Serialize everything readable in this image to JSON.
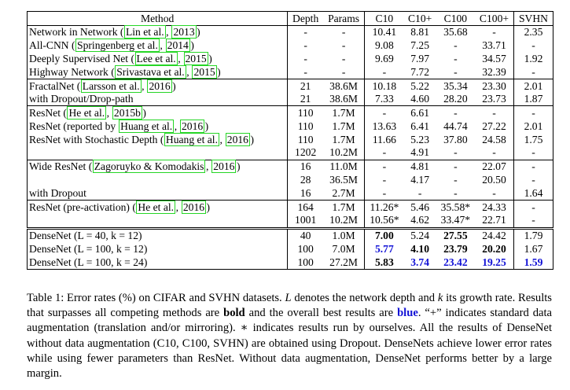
{
  "headers": [
    "Method",
    "Depth",
    "Params",
    "C10",
    "C10+",
    "C100",
    "C100+",
    "SVHN"
  ],
  "rows": [
    {
      "method_text": "Network in Network (",
      "cites": [
        "Lin et al.",
        "2013"
      ],
      "method_tail": ")",
      "cells": [
        "-",
        "-",
        "10.41",
        "8.81",
        "35.68",
        "-",
        "2.35"
      ]
    },
    {
      "method_text": "All-CNN (",
      "cites": [
        "Springenberg et al.",
        "2014"
      ],
      "method_tail": ")",
      "cells": [
        "-",
        "-",
        "9.08",
        "7.25",
        "-",
        "33.71",
        "-"
      ]
    },
    {
      "method_text": "Deeply Supervised Net (",
      "cites": [
        "Lee et al.",
        "2015"
      ],
      "method_tail": ")",
      "cells": [
        "-",
        "-",
        "9.69",
        "7.97",
        "-",
        "34.57",
        "1.92"
      ]
    },
    {
      "method_text": "Highway Network (",
      "cites": [
        "Srivastava et al.",
        "2015"
      ],
      "method_tail": ")",
      "cells": [
        "-",
        "-",
        "-",
        "7.72",
        "-",
        "32.39",
        "-"
      ]
    },
    {
      "method_text": "FractalNet (",
      "cites": [
        "Larsson et al.",
        "2016"
      ],
      "method_tail": ")",
      "cells": [
        "21",
        "38.6M",
        "10.18",
        "5.22",
        "35.34",
        "23.30",
        "2.01"
      ]
    },
    {
      "method_text": "with Dropout/Drop-path",
      "cites": [],
      "method_tail": "",
      "cells": [
        "21",
        "38.6M",
        "7.33",
        "4.60",
        "28.20",
        "23.73",
        "1.87"
      ]
    },
    {
      "method_text": "ResNet (",
      "cites": [
        "He et al.",
        "2015b"
      ],
      "method_tail": ")",
      "cells": [
        "110",
        "1.7M",
        "-",
        "6.61",
        "-",
        "-",
        "-"
      ]
    },
    {
      "method_text": "ResNet (reported by ",
      "cites": [
        "Huang et al.",
        "2016"
      ],
      "method_tail": ")",
      "cells": [
        "110",
        "1.7M",
        "13.63",
        "6.41",
        "44.74",
        "27.22",
        "2.01"
      ]
    },
    {
      "method_text": "ResNet with Stochastic Depth (",
      "cites": [
        "Huang et al.",
        "2016"
      ],
      "method_tail": ")",
      "cells": [
        "110",
        "1.7M",
        "11.66",
        "5.23",
        "37.80",
        "24.58",
        "1.75"
      ]
    },
    {
      "method_text": "",
      "cites": [],
      "method_tail": "",
      "cells": [
        "1202",
        "10.2M",
        "-",
        "4.91",
        "-",
        "-",
        "-"
      ]
    },
    {
      "method_text": "Wide ResNet (",
      "cites": [
        "Zagoruyko & Komodakis",
        "2016"
      ],
      "method_tail": ")",
      "cells": [
        "16",
        "11.0M",
        "-",
        "4.81",
        "-",
        "22.07",
        "-"
      ]
    },
    {
      "method_text": "",
      "cites": [],
      "method_tail": "",
      "cells": [
        "28",
        "36.5M",
        "-",
        "4.17",
        "-",
        "20.50",
        "-"
      ]
    },
    {
      "method_text": "with Dropout",
      "cites": [],
      "method_tail": "",
      "cells": [
        "16",
        "2.7M",
        "-",
        "-",
        "-",
        "-",
        "1.64"
      ]
    },
    {
      "method_text": "ResNet (pre-activation) (",
      "cites": [
        "He et al.",
        "2016"
      ],
      "method_tail": ")",
      "cells": [
        "164",
        "1.7M",
        "11.26*",
        "5.46",
        "35.58*",
        "24.33",
        "-"
      ]
    },
    {
      "method_text": "",
      "cites": [],
      "method_tail": "",
      "cells": [
        "1001",
        "10.2M",
        "10.56*",
        "4.62",
        "33.47*",
        "22.71",
        "-"
      ]
    },
    {
      "method_text": "DenseNet (L = 40, k = 12)",
      "cites": [],
      "method_tail": "",
      "cells": [
        "40",
        "1.0M",
        "7.00",
        "5.24",
        "27.55",
        "24.42",
        "1.79"
      ]
    },
    {
      "method_text": "DenseNet (L = 100, k = 12)",
      "cites": [],
      "method_tail": "",
      "cells": [
        "100",
        "7.0M",
        "5.77",
        "4.10",
        "23.79",
        "20.20",
        "1.67"
      ]
    },
    {
      "method_text": "DenseNet (L = 100, k = 24)",
      "cites": [],
      "method_tail": "",
      "cells": [
        "100",
        "27.2M",
        "5.83",
        "3.74",
        "23.42",
        "19.25",
        "1.59"
      ]
    }
  ],
  "caption": {
    "p1": "Table 1: Error rates (%) on CIFAR and SVHN datasets. ",
    "L": "L",
    "p2": " denotes the network depth and ",
    "k": "k",
    "p3": " its growth rate. Results that surpasses all competing methods are ",
    "bold_word": "bold",
    "p4": " and the overall best results are ",
    "blue_word": "blue",
    "p5": ". “+” indicates standard data augmentation (translation and/or mirroring). ∗ indicates results run by ourselves. All the results of DenseNet without data augmentation (C10, C100, SVHN) are obtained using Dropout. DenseNets achieve lower error rates while using fewer parameters than ResNet. Without data augmentation, DenseNet performs better by a large margin."
  }
}
